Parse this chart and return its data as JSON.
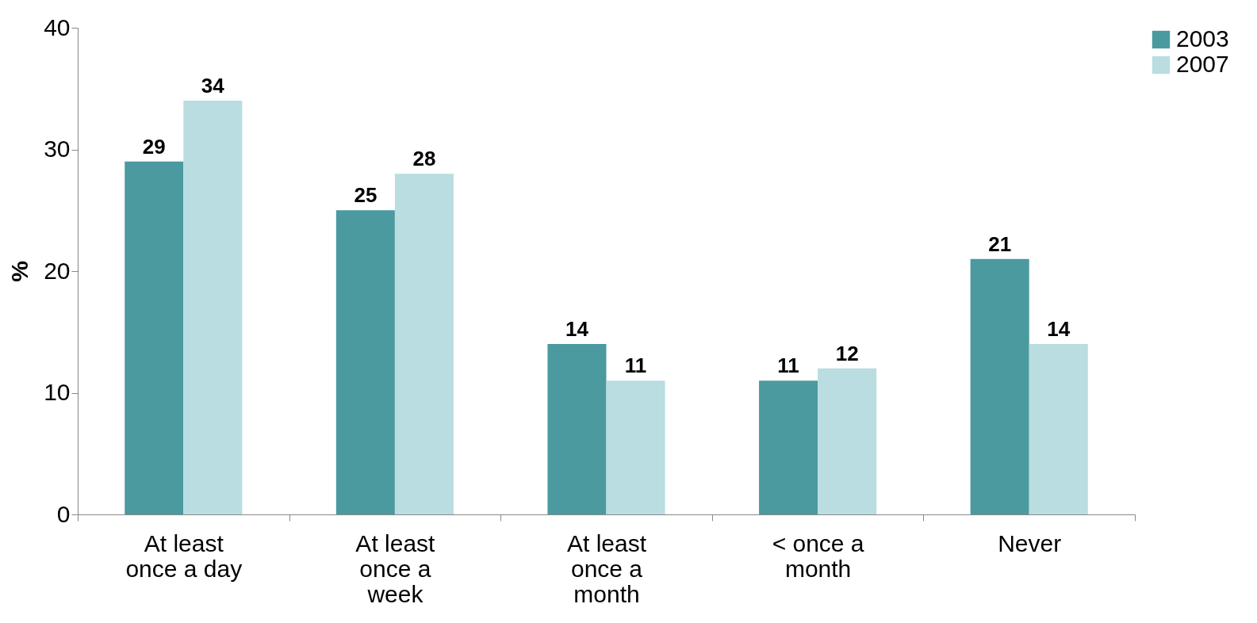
{
  "chart_data": {
    "type": "bar",
    "ylabel": "%",
    "categories": [
      "At least once a day",
      "At least once a week",
      "At least once a month",
      "< once a month",
      "Never"
    ],
    "series": [
      {
        "name": "2003",
        "color": "#4a9aa0",
        "values": [
          29,
          25,
          14,
          11,
          21
        ]
      },
      {
        "name": "2007",
        "color": "#b9dde0",
        "values": [
          34,
          28,
          11,
          12,
          14
        ]
      }
    ],
    "ylim": [
      0,
      40
    ],
    "yticks": [
      0,
      10,
      20,
      30,
      40
    ],
    "grid": false,
    "legend": "right",
    "data_labels": true
  }
}
